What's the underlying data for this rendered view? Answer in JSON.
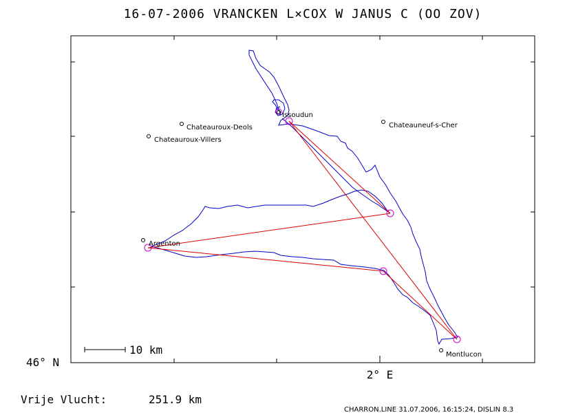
{
  "title": "16-07-2006   VRANCKEN L×COX W   JANUS C (OO ZOV)",
  "axis": {
    "lat_label": "46° N",
    "lon_label": "2° E"
  },
  "scale": {
    "label": "10 km"
  },
  "footer": {
    "label": "Vrije Vlucht:",
    "value": "251.9 km"
  },
  "credit": "CHARRON.LINE 31.07.2006, 16:15:24, DISLIN 8.3",
  "places": [
    {
      "id": "issoudun",
      "name": "Issoudun"
    },
    {
      "id": "chateauroux-deols",
      "name": "Chateauroux-Deols"
    },
    {
      "id": "chateauroux-villers",
      "name": "Chateauroux-Villers"
    },
    {
      "id": "chateauneuf",
      "name": "Chateauneuf-s-Cher"
    },
    {
      "id": "argenton",
      "name": "Argenton"
    },
    {
      "id": "montlucon",
      "name": "Montlucon"
    }
  ],
  "colors": {
    "track": "#0000cc",
    "route": "#dd0000",
    "turnpoint": "#cc00cc",
    "frame": "#000000"
  }
}
